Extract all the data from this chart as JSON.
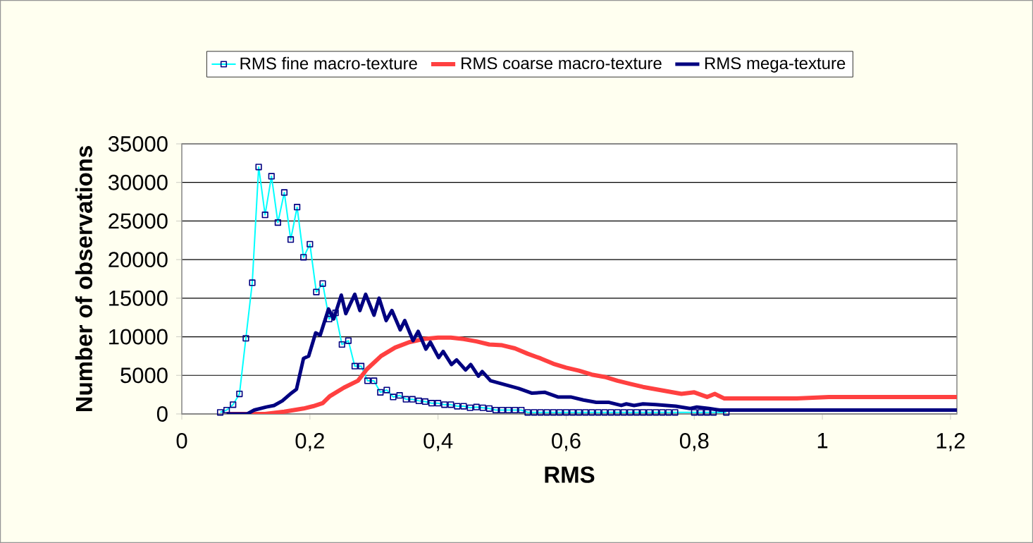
{
  "chart_data": {
    "type": "line",
    "xlabel": "RMS",
    "ylabel": "Number of observations",
    "xlim": [
      0,
      1.21
    ],
    "ylim": [
      0,
      35000
    ],
    "xticks": [
      0,
      {
        "value": 0.2,
        "label": "0,2"
      },
      {
        "value": 0.4,
        "label": "0,4"
      },
      {
        "value": 0.6,
        "label": "0,6"
      },
      {
        "value": 0.8,
        "label": "0,8"
      },
      1,
      {
        "value": 1.2,
        "label": "1,2"
      }
    ],
    "yticks": [
      0,
      5000,
      10000,
      15000,
      20000,
      25000,
      30000,
      35000
    ],
    "grid": "y",
    "legend": "top",
    "series": [
      {
        "name": "RMS fine macro-texture",
        "color": "#00ffff",
        "marker": "square",
        "x": [
          0.06,
          0.07,
          0.08,
          0.09,
          0.1,
          0.11,
          0.12,
          0.13,
          0.14,
          0.15,
          0.16,
          0.17,
          0.18,
          0.19,
          0.2,
          0.21,
          0.22,
          0.23,
          0.24,
          0.25,
          0.26,
          0.27,
          0.28,
          0.29,
          0.3,
          0.31,
          0.32,
          0.33,
          0.34,
          0.35,
          0.36,
          0.37,
          0.38,
          0.39,
          0.4,
          0.41,
          0.42,
          0.43,
          0.44,
          0.45,
          0.46,
          0.47,
          0.48,
          0.49,
          0.5,
          0.51,
          0.52,
          0.53,
          0.54,
          0.55,
          0.56,
          0.57,
          0.58,
          0.59,
          0.6,
          0.61,
          0.62,
          0.63,
          0.64,
          0.65,
          0.66,
          0.67,
          0.68,
          0.69,
          0.7,
          0.71,
          0.72,
          0.73,
          0.74,
          0.75,
          0.76,
          0.77,
          0.8,
          0.81,
          0.82,
          0.83,
          0.85
        ],
        "values": [
          200,
          500,
          1200,
          2600,
          9800,
          17000,
          32000,
          25800,
          30800,
          24800,
          28700,
          22600,
          26800,
          20300,
          22000,
          15800,
          16900,
          12300,
          13100,
          9000,
          9500,
          6200,
          6200,
          4300,
          4300,
          2800,
          3100,
          2200,
          2400,
          1900,
          1900,
          1700,
          1600,
          1400,
          1400,
          1200,
          1200,
          1000,
          1000,
          800,
          900,
          800,
          700,
          500,
          500,
          500,
          500,
          500,
          200,
          200,
          200,
          200,
          200,
          200,
          200,
          200,
          200,
          200,
          200,
          200,
          200,
          200,
          200,
          200,
          200,
          200,
          200,
          200,
          200,
          200,
          200,
          200,
          200,
          200,
          200,
          200,
          200
        ]
      },
      {
        "name": "RMS coarse macro-texture",
        "color": "#ff4040",
        "marker": "none",
        "x": [
          0.07,
          0.13,
          0.16,
          0.19,
          0.205,
          0.22,
          0.231,
          0.253,
          0.275,
          0.289,
          0.311,
          0.333,
          0.355,
          0.377,
          0.4,
          0.42,
          0.44,
          0.46,
          0.48,
          0.5,
          0.52,
          0.54,
          0.56,
          0.58,
          0.6,
          0.62,
          0.64,
          0.66,
          0.68,
          0.7,
          0.72,
          0.74,
          0.76,
          0.78,
          0.8,
          0.82,
          0.832,
          0.847,
          0.96,
          1.01,
          1.21
        ],
        "values": [
          0,
          0,
          300,
          700,
          1000,
          1400,
          2300,
          3400,
          4300,
          5800,
          7500,
          8600,
          9300,
          9700,
          9900,
          9900,
          9700,
          9400,
          9000,
          8900,
          8500,
          7800,
          7200,
          6500,
          6000,
          5600,
          5100,
          4800,
          4300,
          3900,
          3500,
          3200,
          2900,
          2600,
          2800,
          2200,
          2600,
          2000,
          2000,
          2200,
          2200
        ]
      },
      {
        "name": "RMS mega-texture",
        "color": "#000080",
        "marker": "none",
        "x": [
          0.07,
          0.102,
          0.113,
          0.132,
          0.144,
          0.157,
          0.171,
          0.179,
          0.19,
          0.198,
          0.209,
          0.216,
          0.229,
          0.237,
          0.249,
          0.256,
          0.27,
          0.278,
          0.287,
          0.3,
          0.308,
          0.319,
          0.328,
          0.341,
          0.348,
          0.361,
          0.369,
          0.381,
          0.388,
          0.401,
          0.408,
          0.421,
          0.429,
          0.443,
          0.451,
          0.463,
          0.469,
          0.482,
          0.504,
          0.526,
          0.546,
          0.567,
          0.587,
          0.607,
          0.627,
          0.647,
          0.667,
          0.686,
          0.694,
          0.706,
          0.72,
          0.74,
          0.771,
          0.793,
          0.804,
          0.823,
          0.84,
          1.21
        ],
        "values": [
          0,
          0,
          500,
          900,
          1100,
          1700,
          2700,
          3200,
          7200,
          7500,
          10500,
          10200,
          13600,
          12300,
          15400,
          13000,
          15500,
          13400,
          15500,
          12800,
          15000,
          12100,
          13400,
          10900,
          12100,
          9500,
          10700,
          8400,
          9300,
          7300,
          8100,
          6400,
          7000,
          5700,
          6400,
          4900,
          5500,
          4300,
          3800,
          3300,
          2700,
          2800,
          2200,
          2200,
          1800,
          1500,
          1500,
          1100,
          1300,
          1100,
          1300,
          1200,
          1000,
          700,
          900,
          700,
          500,
          500
        ]
      }
    ]
  }
}
